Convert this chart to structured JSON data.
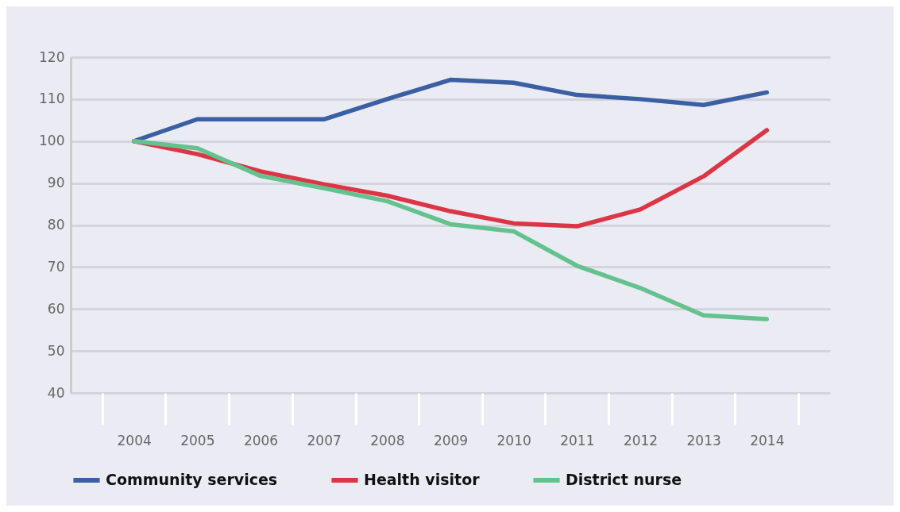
{
  "chart_data": {
    "type": "line",
    "categories": [
      "2004",
      "2005",
      "2006",
      "2007",
      "2008",
      "2009",
      "2010",
      "2011",
      "2012",
      "2013",
      "2014"
    ],
    "series": [
      {
        "name": "Community services",
        "color": "#3b5fa3",
        "values": [
          100,
          105.2,
          105.2,
          105.2,
          110,
          114.6,
          113.9,
          111,
          110,
          108.6,
          111.6
        ]
      },
      {
        "name": "Health visitor",
        "color": "#dc3545",
        "values": [
          100,
          96.9,
          92.8,
          89.7,
          87,
          83.3,
          80.4,
          79.7,
          83.7,
          91.6,
          102.6
        ]
      },
      {
        "name": "District nurse",
        "color": "#63c28d",
        "values": [
          100,
          98.3,
          91.7,
          88.8,
          85.7,
          80.2,
          78.5,
          70.3,
          65,
          58.5,
          57.6
        ]
      }
    ],
    "ylim": [
      40,
      120
    ],
    "yticks": [
      40,
      50,
      60,
      70,
      80,
      90,
      100,
      110,
      120
    ],
    "grid": "y",
    "legend": "bottom",
    "marker": "none",
    "line_style": "solid"
  }
}
